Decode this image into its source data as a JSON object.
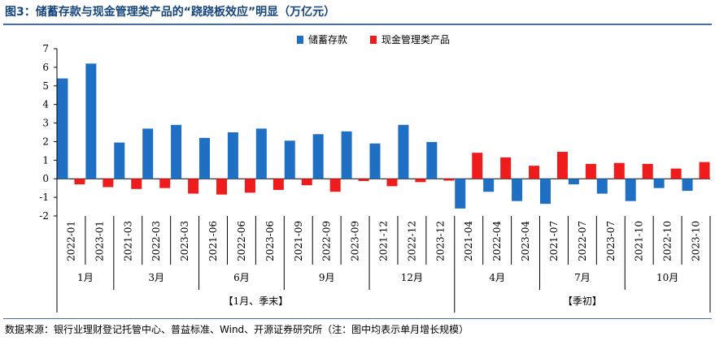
{
  "title": "图3：储蓄存款与现金管理类产品的“跷跷板效应”明显（万亿元）",
  "source": "数据来源：银行业理财登记托管中心、普益标准、Wind、开源证券研究所（注：图中均表示单月增长规模）",
  "colors": {
    "deposit": "#1f6fc5",
    "cash": "#ee1c1c",
    "axis": "#000000"
  },
  "chart_data": {
    "type": "bar",
    "categories": [
      "2022-01",
      "2023-01",
      "2021-03",
      "2022-03",
      "2023-03",
      "2021-06",
      "2022-06",
      "2023-06",
      "2021-09",
      "2022-09",
      "2023-09",
      "2021-12",
      "2022-12",
      "2023-12",
      "2021-04",
      "2022-04",
      "2023-04",
      "2021-07",
      "2022-07",
      "2023-07",
      "2021-10",
      "2022-10",
      "2023-10"
    ],
    "series": [
      {
        "name": "储蓄存款",
        "values": [
          5.4,
          6.2,
          1.95,
          2.7,
          2.9,
          2.2,
          2.5,
          2.7,
          2.05,
          2.4,
          2.55,
          1.9,
          2.9,
          1.98,
          -1.6,
          -0.7,
          -1.2,
          -1.35,
          -0.3,
          -0.8,
          -1.2,
          -0.5,
          -0.65
        ]
      },
      {
        "name": "现金管理类产品",
        "values": [
          -0.3,
          -0.45,
          -0.55,
          -0.5,
          -0.8,
          -0.85,
          -0.75,
          -0.6,
          -0.35,
          -0.7,
          -0.12,
          -0.4,
          -0.18,
          -0.1,
          1.4,
          1.15,
          0.7,
          1.45,
          0.8,
          0.85,
          0.8,
          0.55,
          0.9
        ]
      }
    ],
    "month_groups": [
      {
        "label": "1月",
        "start": 0,
        "end": 1
      },
      {
        "label": "3月",
        "start": 2,
        "end": 4
      },
      {
        "label": "6月",
        "start": 5,
        "end": 7
      },
      {
        "label": "9月",
        "start": 8,
        "end": 10
      },
      {
        "label": "12月",
        "start": 11,
        "end": 13
      },
      {
        "label": "4月",
        "start": 14,
        "end": 16
      },
      {
        "label": "7月",
        "start": 17,
        "end": 19
      },
      {
        "label": "10月",
        "start": 20,
        "end": 22
      }
    ],
    "super_groups": [
      {
        "label": "【1月、季末】",
        "start": 0,
        "end": 13
      },
      {
        "label": "【季初】",
        "start": 14,
        "end": 22
      }
    ],
    "yticks": [
      7,
      6,
      5,
      4,
      3,
      2,
      1,
      0,
      -1,
      -2
    ],
    "ylim": [
      -2,
      7
    ],
    "legend": "top-center"
  }
}
